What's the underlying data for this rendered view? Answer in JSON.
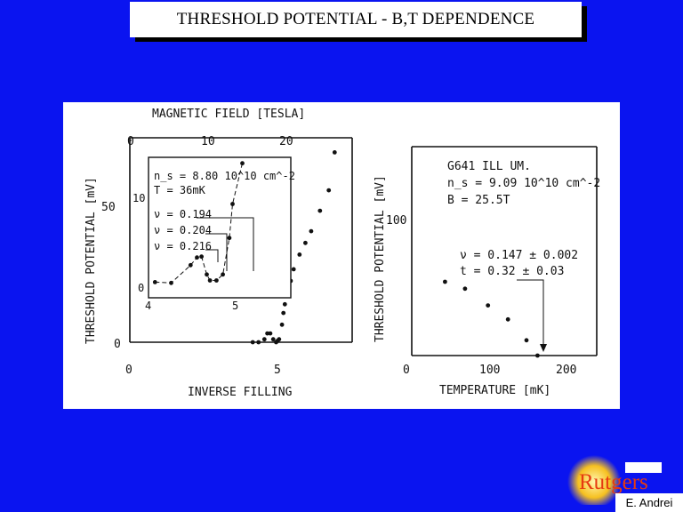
{
  "slide": {
    "title": "THRESHOLD POTENTIAL - B,T DEPENDENCE",
    "author": "E. Andrei",
    "logo_text": "Rutgers",
    "colors": {
      "background": "#0a14f0",
      "logo": "#e63a10",
      "logo_glow": "#f6c020"
    }
  },
  "chart_data": [
    {
      "type": "scatter",
      "title": "",
      "xlabel": "INVERSE FILLING",
      "ylabel": "THRESHOLD POTENTIAL [mV]",
      "top_axis_label": "MAGNETIC FIELD [TESLA]",
      "xlim": [
        0,
        7.6
      ],
      "ylim": [
        -3,
        70
      ],
      "x_ticks": [
        "0",
        "5"
      ],
      "y_ticks": [
        "0",
        "50"
      ],
      "top_ticks": [
        "0",
        "10",
        "20"
      ],
      "series": [
        {
          "points": [
            [
              4.2,
              0
            ],
            [
              4.4,
              0
            ],
            [
              4.6,
              1
            ],
            [
              4.7,
              3
            ],
            [
              4.8,
              3
            ],
            [
              4.9,
              1
            ],
            [
              5.0,
              0
            ],
            [
              5.05,
              0.5
            ],
            [
              5.1,
              1
            ],
            [
              5.2,
              6
            ],
            [
              5.25,
              10
            ],
            [
              5.3,
              13
            ],
            [
              5.4,
              17
            ],
            [
              5.5,
              21
            ],
            [
              5.6,
              25
            ],
            [
              5.8,
              30
            ],
            [
              6.0,
              34
            ],
            [
              6.2,
              38
            ],
            [
              6.5,
              45
            ],
            [
              6.8,
              52
            ],
            [
              7.0,
              65
            ]
          ]
        }
      ],
      "inset": {
        "annotation": [
          "n_s = 8.80 10^10 cm^-2",
          "T = 36mK"
        ],
        "nu_labels": [
          "ν = 0.194",
          "ν = 0.204",
          "ν = 0.216"
        ],
        "xlim": [
          4,
          6.2
        ],
        "ylim": [
          -0.5,
          15
        ],
        "x_ticks": [
          "4",
          "5"
        ],
        "y_ticks": [
          "0",
          "10"
        ],
        "points": [
          [
            4.1,
            0.3
          ],
          [
            4.35,
            0.2
          ],
          [
            4.65,
            2.3
          ],
          [
            4.75,
            3.2
          ],
          [
            4.82,
            3.3
          ],
          [
            4.9,
            1.2
          ],
          [
            4.95,
            0.5
          ],
          [
            5.05,
            0.5
          ],
          [
            5.15,
            1.2
          ],
          [
            5.25,
            5.5
          ],
          [
            5.3,
            9.5
          ],
          [
            5.45,
            14.3
          ]
        ]
      }
    },
    {
      "type": "scatter",
      "title": "",
      "xlabel": "TEMPERATURE [mK]",
      "ylabel": "THRESHOLD POTENTIAL [mV]",
      "xlim": [
        0,
        250
      ],
      "ylim": [
        0,
        150
      ],
      "x_ticks": [
        "0",
        "100",
        "200"
      ],
      "y_ticks": [
        "100"
      ],
      "annotation": [
        "G641 ILL UM.",
        "n_s = 9.09 10^10 cm^-2",
        "B = 25.5T",
        "ν = 0.147 ± 0.002",
        "t = 0.32 ± 0.03"
      ],
      "series": [
        {
          "points": [
            [
              45,
              53
            ],
            [
              72,
              48
            ],
            [
              103,
              36
            ],
            [
              130,
              26
            ],
            [
              155,
              11
            ],
            [
              170,
              0
            ]
          ]
        }
      ]
    }
  ]
}
